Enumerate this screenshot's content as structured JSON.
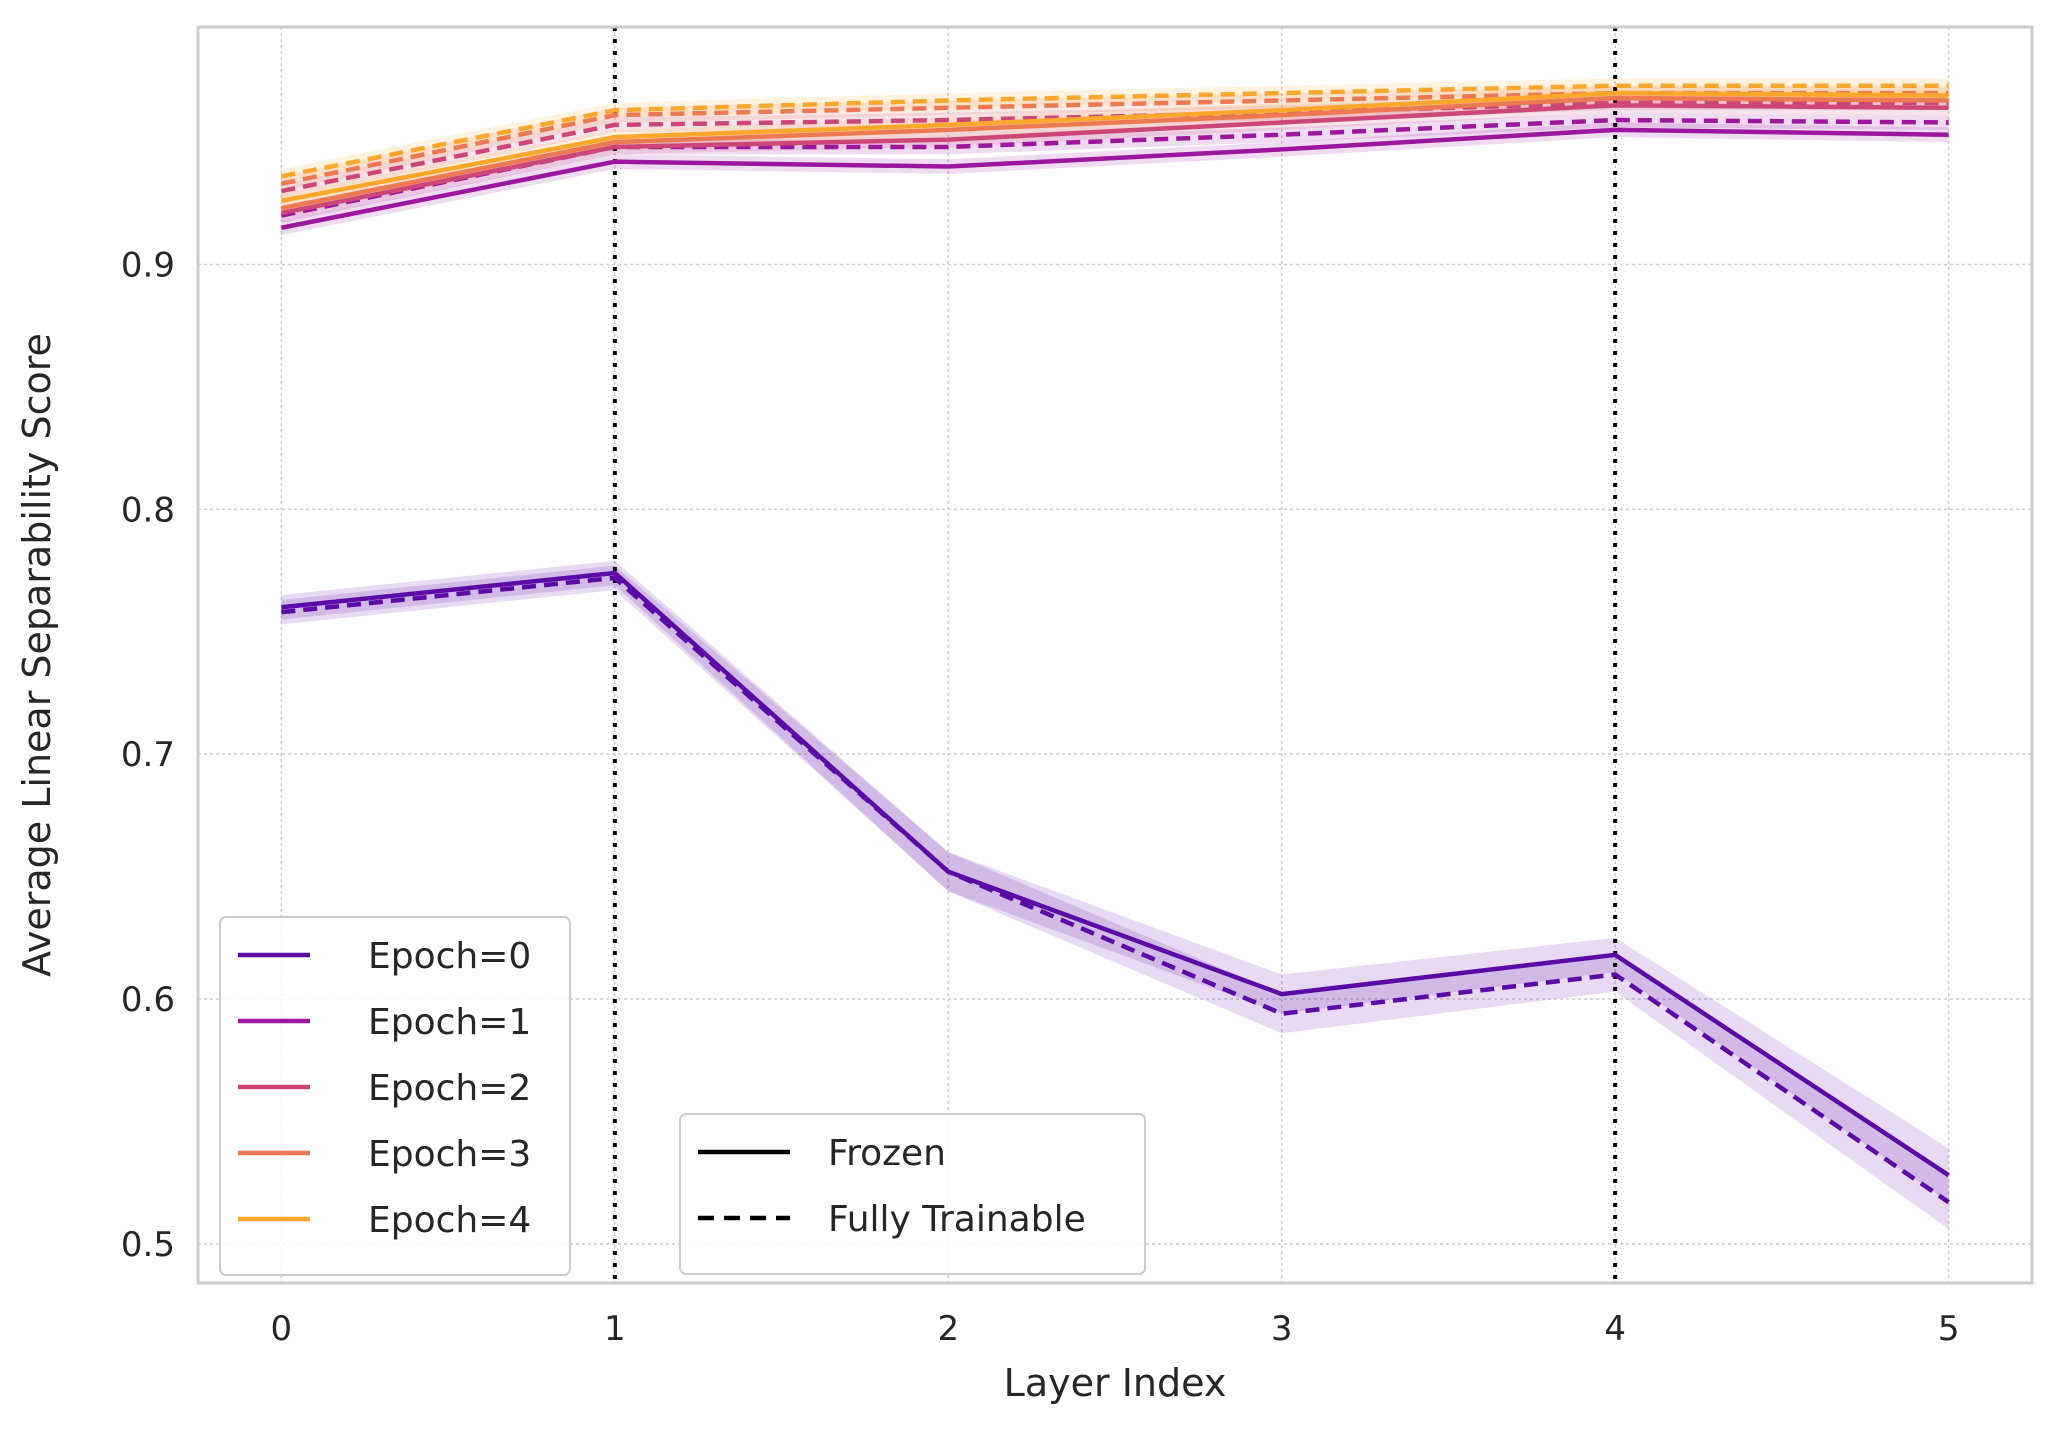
{
  "chart_data": {
    "type": "line",
    "title": "",
    "xlabel": "Layer Index",
    "ylabel": "Average Linear Separability Score",
    "x": [
      0,
      1,
      2,
      3,
      4,
      5
    ],
    "x_ticks": [
      "0",
      "1",
      "2",
      "3",
      "4",
      "5"
    ],
    "y_ticks": [
      "0.5",
      "0.6",
      "0.7",
      "0.8",
      "0.9"
    ],
    "y_tick_values": [
      0.5,
      0.6,
      0.7,
      0.8,
      0.9
    ],
    "xlim": [
      -0.25,
      5.25
    ],
    "ylim": [
      0.484,
      0.997
    ],
    "grid": true,
    "vertical_markers": [
      1,
      4
    ],
    "series": [
      {
        "epoch": "Epoch=0",
        "style": "Frozen",
        "color": "#5b0aa6",
        "values": [
          0.76,
          0.774,
          0.652,
          0.602,
          0.618,
          0.528
        ]
      },
      {
        "epoch": "Epoch=0",
        "style": "Fully Trainable",
        "color": "#5b0aa6",
        "values": [
          0.758,
          0.772,
          0.652,
          0.594,
          0.61,
          0.517
        ]
      },
      {
        "epoch": "Epoch=1",
        "style": "Frozen",
        "color": "#9c179e",
        "values": [
          0.915,
          0.942,
          0.94,
          0.947,
          0.955,
          0.953
        ]
      },
      {
        "epoch": "Epoch=1",
        "style": "Fully Trainable",
        "color": "#9c179e",
        "values": [
          0.92,
          0.948,
          0.948,
          0.953,
          0.959,
          0.958
        ]
      },
      {
        "epoch": "Epoch=2",
        "style": "Frozen",
        "color": "#cc4778",
        "values": [
          0.921,
          0.948,
          0.951,
          0.958,
          0.965,
          0.964
        ]
      },
      {
        "epoch": "Epoch=2",
        "style": "Fully Trainable",
        "color": "#cc4778",
        "values": [
          0.93,
          0.957,
          0.959,
          0.962,
          0.966,
          0.966
        ]
      },
      {
        "epoch": "Epoch=3",
        "style": "Frozen",
        "color": "#ed7953",
        "values": [
          0.923,
          0.95,
          0.955,
          0.961,
          0.968,
          0.967
        ]
      },
      {
        "epoch": "Epoch=3",
        "style": "Fully Trainable",
        "color": "#ed7953",
        "values": [
          0.933,
          0.961,
          0.964,
          0.967,
          0.97,
          0.97
        ]
      },
      {
        "epoch": "Epoch=4",
        "style": "Frozen",
        "color": "#fba72c",
        "values": [
          0.926,
          0.952,
          0.957,
          0.963,
          0.97,
          0.969
        ]
      },
      {
        "epoch": "Epoch=4",
        "style": "Fully Trainable",
        "color": "#fba72c",
        "values": [
          0.936,
          0.963,
          0.967,
          0.97,
          0.973,
          0.973
        ]
      }
    ],
    "band_halfwidth_epoch0": [
      0.005,
      0.005,
      0.008,
      0.008,
      0.007,
      0.011
    ],
    "band_halfwidth_other": 0.003,
    "legend_epochs": {
      "placement": "lower-left",
      "entries": [
        {
          "label": "Epoch=0",
          "color": "#5b0aa6"
        },
        {
          "label": "Epoch=1",
          "color": "#9c179e"
        },
        {
          "label": "Epoch=2",
          "color": "#cc4778"
        },
        {
          "label": "Epoch=3",
          "color": "#ed7953"
        },
        {
          "label": "Epoch=4",
          "color": "#fba72c"
        }
      ]
    },
    "legend_styles": {
      "placement": "lower-center",
      "entries": [
        {
          "label": "Frozen",
          "dash": "solid"
        },
        {
          "label": "Fully Trainable",
          "dash": "dashed"
        }
      ]
    }
  }
}
